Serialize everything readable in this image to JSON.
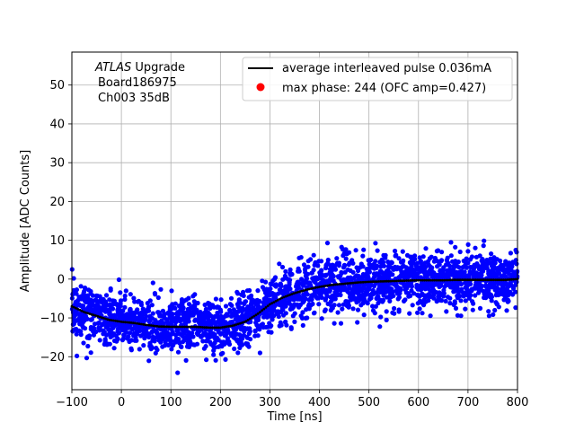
{
  "chart_data": {
    "type": "scatter",
    "title": "",
    "xlabel": "Time [ns]",
    "ylabel": "Amplitude [ADC Counts]",
    "xlim": [
      -100,
      800
    ],
    "ylim": [
      -28.5,
      58.5
    ],
    "xticks": [
      -100,
      0,
      100,
      200,
      300,
      400,
      500,
      600,
      700,
      800
    ],
    "yticks": [
      -20,
      -10,
      0,
      10,
      20,
      30,
      40,
      50
    ],
    "xtick_labels": [
      "−100",
      "0",
      "100",
      "200",
      "300",
      "400",
      "500",
      "600",
      "700",
      "800"
    ],
    "ytick_labels": [
      "−20",
      "−10",
      "0",
      "10",
      "20",
      "30",
      "40",
      "50"
    ],
    "grid": true,
    "legend_position": "top-right",
    "annotation": {
      "experiment": "ATLAS",
      "experiment_suffix": " Upgrade",
      "board": "Board186975",
      "channel": "Ch003 35dB"
    },
    "series": [
      {
        "name": "average interleaved pulse 0.036mA",
        "kind": "line",
        "color": "#000000",
        "x": [
          -100,
          -75,
          -50,
          -25,
          0,
          25,
          50,
          75,
          100,
          125,
          150,
          175,
          200,
          225,
          250,
          275,
          300,
          325,
          350,
          375,
          400,
          425,
          450,
          475,
          500,
          525,
          550,
          575,
          600,
          625,
          650,
          675,
          700,
          725,
          750,
          775,
          800
        ],
        "y": [
          -7,
          -8.5,
          -9.5,
          -10.5,
          -11,
          -11.3,
          -11.8,
          -12.2,
          -12.3,
          -12.3,
          -12.3,
          -12.5,
          -12.5,
          -12,
          -11,
          -9,
          -6.5,
          -4.8,
          -3.6,
          -2.7,
          -2,
          -1.5,
          -1.2,
          -0.9,
          -0.7,
          -0.6,
          -0.5,
          -0.4,
          -0.3,
          -0.3,
          -0.3,
          -0.2,
          -0.2,
          -0.2,
          -0.2,
          -0.2,
          0
        ]
      },
      {
        "name": "max phase: 244 (OFC amp=0.427)",
        "kind": "marker",
        "color": "#ff0000",
        "x": [],
        "y": []
      },
      {
        "name": "",
        "kind": "scatter",
        "color": "#0000ff",
        "noise_spread": 3.5,
        "x_range": [
          -100,
          800
        ]
      }
    ]
  }
}
